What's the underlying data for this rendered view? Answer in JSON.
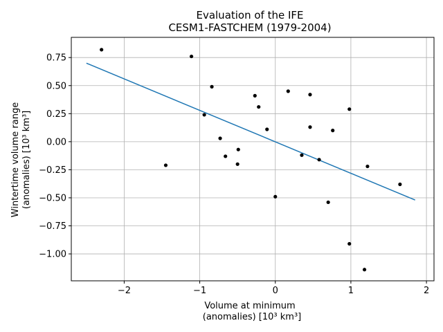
{
  "chart_data": {
    "type": "scatter",
    "title_line1": "Evaluation of the IFE",
    "title_line2": "CESM1-FASTCHEM (1979-2004)",
    "xlabel_line1": "Volume at minimum",
    "xlabel_line2": "(anomalies) [10³ km³]",
    "ylabel_line1": "Wintertime volume range",
    "ylabel_line2": "(anomalies) [10³ km³]",
    "xlim": [
      -2.7,
      2.1
    ],
    "ylim": [
      -1.24,
      0.93
    ],
    "xticks": [
      -2,
      -1,
      0,
      1,
      2
    ],
    "xtick_labels": [
      "−2",
      "−1",
      "0",
      "1",
      "2"
    ],
    "yticks": [
      -1.0,
      -0.75,
      -0.5,
      -0.25,
      0.0,
      0.25,
      0.5,
      0.75
    ],
    "ytick_labels": [
      "−1.00",
      "−0.75",
      "−0.50",
      "−0.25",
      "0.00",
      "0.25",
      "0.50",
      "0.75"
    ],
    "grid": true,
    "points": [
      {
        "x": -2.3,
        "y": 0.82
      },
      {
        "x": -1.11,
        "y": 0.76
      },
      {
        "x": -0.84,
        "y": 0.49
      },
      {
        "x": -0.94,
        "y": 0.24
      },
      {
        "x": -1.45,
        "y": -0.21
      },
      {
        "x": -0.73,
        "y": 0.03
      },
      {
        "x": -0.66,
        "y": -0.13
      },
      {
        "x": -0.49,
        "y": -0.07
      },
      {
        "x": -0.5,
        "y": -0.2
      },
      {
        "x": -0.27,
        "y": 0.41
      },
      {
        "x": -0.22,
        "y": 0.31
      },
      {
        "x": -0.11,
        "y": 0.11
      },
      {
        "x": 0.0,
        "y": -0.49
      },
      {
        "x": 0.17,
        "y": 0.45
      },
      {
        "x": 0.35,
        "y": -0.12
      },
      {
        "x": 0.46,
        "y": 0.42
      },
      {
        "x": 0.46,
        "y": 0.13
      },
      {
        "x": 0.58,
        "y": -0.16
      },
      {
        "x": 0.7,
        "y": -0.54
      },
      {
        "x": 0.76,
        "y": 0.1
      },
      {
        "x": 0.98,
        "y": 0.29
      },
      {
        "x": 0.98,
        "y": -0.91
      },
      {
        "x": 1.22,
        "y": -0.22
      },
      {
        "x": 1.18,
        "y": -1.14
      },
      {
        "x": 1.65,
        "y": -0.38
      }
    ],
    "fit_line": {
      "x": [
        -2.5,
        1.85
      ],
      "y": [
        0.7,
        -0.52
      ]
    },
    "point_color": "#000000",
    "fit_color": "#1f77b4",
    "grid_color": "#b0b0b0"
  }
}
